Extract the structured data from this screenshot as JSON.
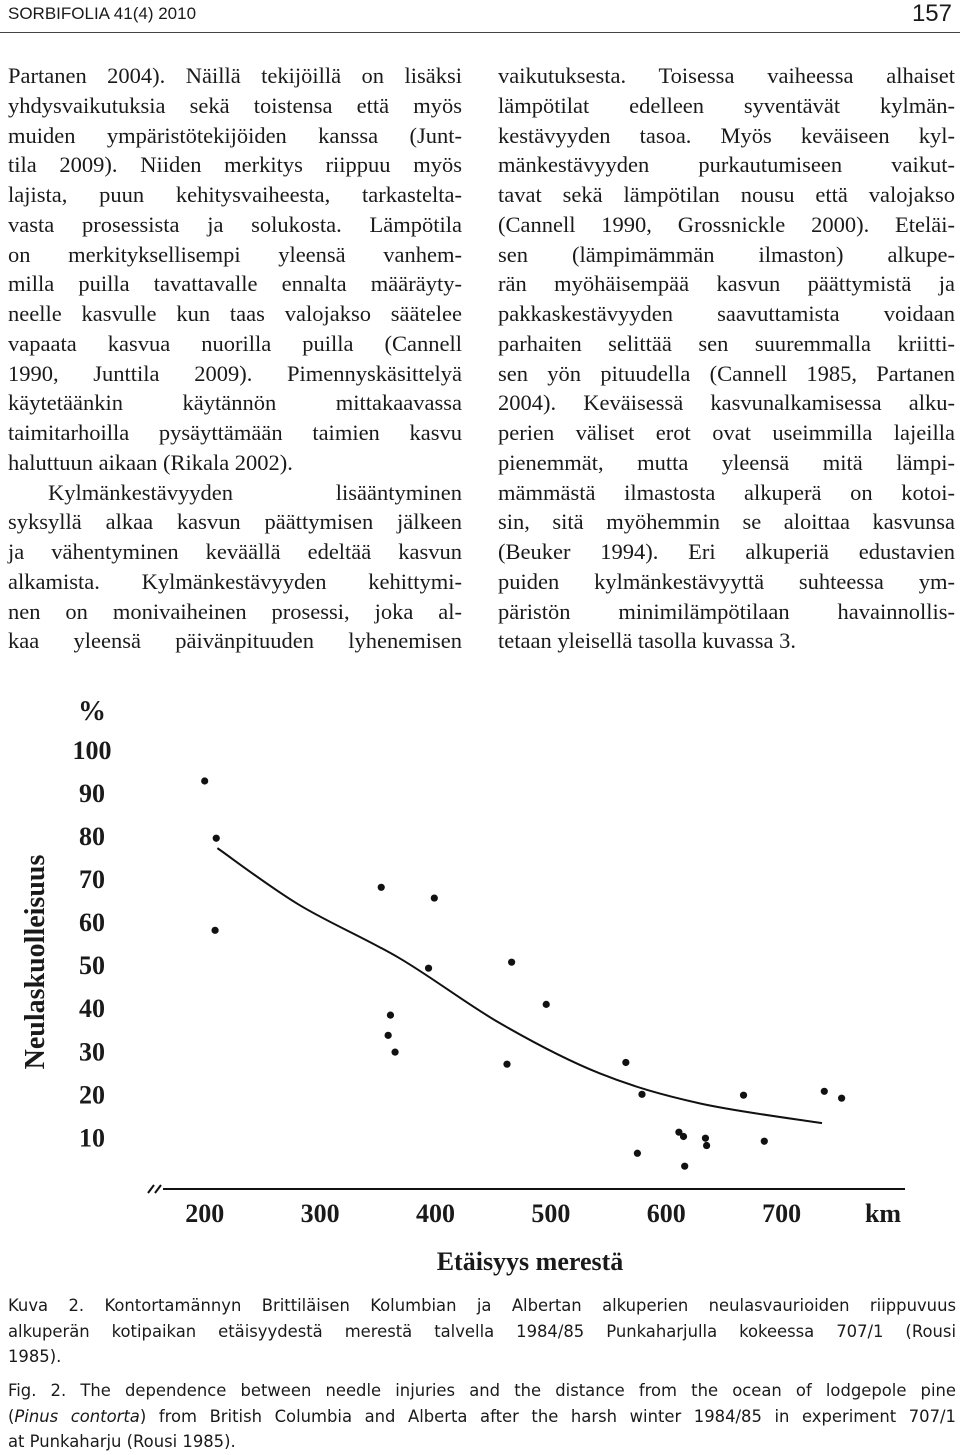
{
  "header": {
    "journal": "SORBIFOLIA 41(4) 2010",
    "page": "157"
  },
  "body": {
    "left_column": [
      "Partanen 2004). Näillä tekijöillä on lisäksi",
      "yhdysvaikutuksia sekä toistensa että myös",
      "muiden ympäristötekijöiden kanssa (Junt-",
      "tila 2009). Niiden merkitys riippuu myös",
      "lajista, puun kehitysvaiheesta, tarkastelta-",
      "vasta prosessista ja solukosta. Lämpötila",
      "on merkityksellisempi yleensä vanhem-",
      "milla puilla tavattavalle ennalta määräyty-",
      "neelle kasvulle kun taas valojakso säätelee",
      "vapaata kasvua nuorilla puilla (Cannell",
      "1990, Junttila 2009). Pimennyskäsittelyä",
      "käytetäänkin käytännön mittakaavassa",
      "taimitarhoilla pysäyttämään taimien kasvu",
      "haluttuun aikaan (Rikala 2002).",
      "Kylmänkestävyyden lisääntyminen",
      "syksyllä alkaa kasvun päättymisen jälkeen",
      "ja vähentyminen keväällä edeltää kasvun",
      "alkamista. Kylmänkestävyyden kehittymi-",
      "nen on monivaiheinen prosessi, joka al-",
      "kaa yleensä päivänpituuden lyhenemisen"
    ],
    "right_column": [
      "vaikutuksesta. Toisessa vaiheessa alhaiset",
      "lämpötilat edelleen syventävät kylmän-",
      "kestävyyden tasoa. Myös keväiseen kyl-",
      "mänkestävyyden purkautumiseen vaikut-",
      "tavat sekä lämpötilan nousu että valojakso",
      "(Cannell 1990, Grossnickle 2000). Eteläi-",
      "sen (lämpimämmän ilmaston) alkupe-",
      "rän myöhäisempää kasvun päättymistä ja",
      "pakkaskestävyyden saavuttamista voidaan",
      "parhaiten selittää sen suuremmalla kriitti-",
      "sen yön pituudella (Cannell 1985, Partanen",
      "2004). Keväisessä kasvunalkamisessa alku-",
      "perien väliset erot ovat useimmilla lajeilla",
      "pienemmät, mutta yleensä mitä lämpi-",
      "mämmästä ilmastosta alkuperä on kotoi-",
      "sin, sitä myöhemmin se aloittaa kasvunsa",
      "(Beuker 1994). Eri alkuperiä edustavien",
      "puiden kylmänkestävyyttä suhteessa ym-",
      "päristön minimilämpötilaan havainnollis-",
      "tetaan yleisellä tasolla kuvassa 3."
    ]
  },
  "chart_data": {
    "type": "scatter",
    "y_unit": "%",
    "x_unit": "km",
    "xlabel": "Etäisyys merestä",
    "ylabel": "Neulaskuolleisuus",
    "xlim": [
      150,
      800
    ],
    "ylim": [
      -2,
      100
    ],
    "xticks": [
      200,
      300,
      400,
      500,
      600,
      700
    ],
    "yticks": [
      10,
      20,
      30,
      40,
      50,
      60,
      70,
      80,
      90,
      100
    ],
    "series": [
      {
        "type": "scatter",
        "color": "#111111",
        "x": [
          200,
          210,
          209,
          353,
          399,
          394,
          361,
          359,
          365,
          466,
          496,
          462,
          565,
          579,
          575,
          611,
          615,
          616,
          634,
          635,
          667,
          685,
          737,
          752
        ],
        "y": [
          92.8,
          79.5,
          58.1,
          68.1,
          65.6,
          49.3,
          38.4,
          33.7,
          29.8,
          50.7,
          40.9,
          27.0,
          27.4,
          20.0,
          6.3,
          11.2,
          10.2,
          3.3,
          9.8,
          8.1,
          19.8,
          9.1,
          20.7,
          19.1
        ]
      },
      {
        "type": "line",
        "color": "#111111",
        "x": [
          211,
          282,
          369,
          456,
          542,
          629,
          735
        ],
        "y": [
          77.2,
          64.0,
          51.6,
          36.5,
          24.9,
          17.9,
          13.3
        ]
      }
    ]
  },
  "caption_fi": {
    "lines": [
      "Kuva 2. Kontortamännyn Brittiläisen Kolumbian ja Albertan alkuperien neulasvaurioiden riippuvuus",
      "alkuperän kotipaikan etäisyydestä merestä talvella 1984/85 Punkaharjulla kokeessa 707/1 (Rousi",
      "1985)."
    ]
  },
  "caption_en": {
    "line1": "Fig. 2. The dependence between needle injuries and the distance from the ocean of lodgepole pine",
    "line2_start": "(",
    "species": "Pinus contorta",
    "line2_end": ") from British Columbia and Alberta after the harsh winter 1984/85 in experiment 707/1",
    "line3": "at Punkaharju (Rousi 1985)."
  }
}
